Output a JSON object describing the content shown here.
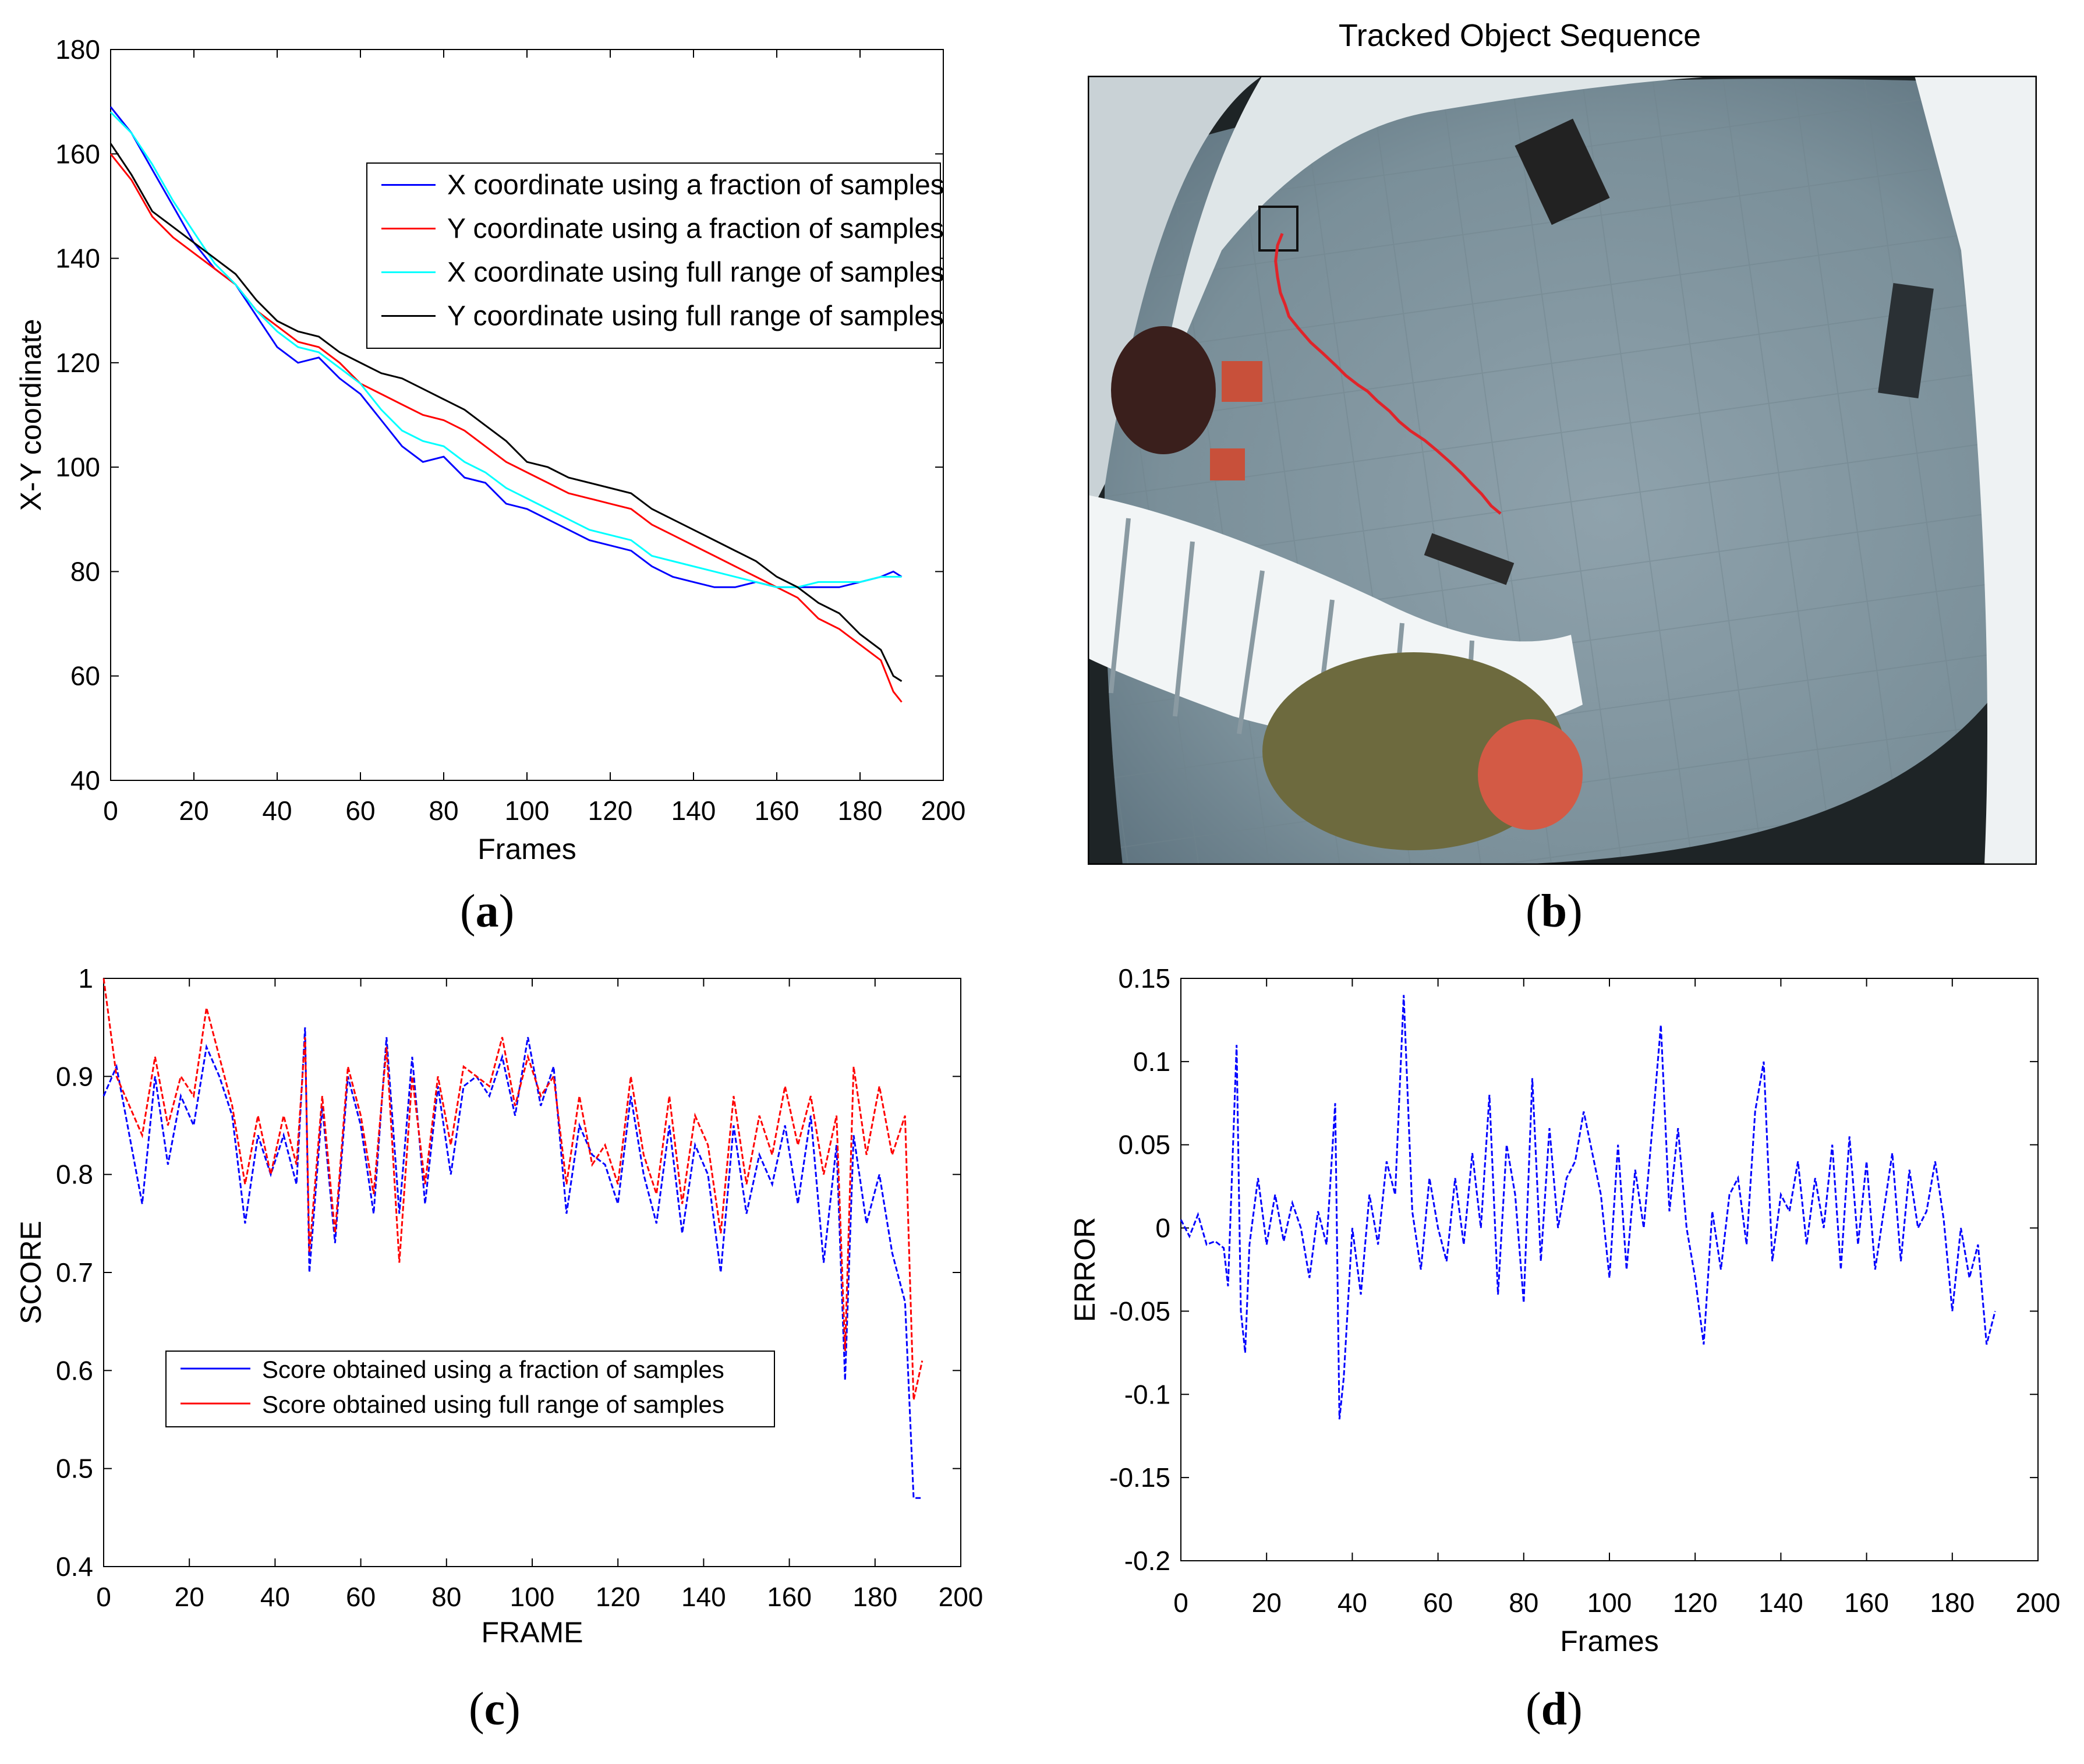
{
  "captions": {
    "a": {
      "open": "(",
      "letter": "a",
      "close": ")"
    },
    "b": {
      "open": "(",
      "letter": "b",
      "close": ")"
    },
    "c": {
      "open": "(",
      "letter": "c",
      "close": ")"
    },
    "d": {
      "open": "(",
      "letter": "d",
      "close": ")"
    }
  },
  "photo": {
    "title": "Tracked Object Sequence",
    "track_color": "#e0242a",
    "track_points": [
      [
        0.205,
        0.2
      ],
      [
        0.2,
        0.215
      ],
      [
        0.198,
        0.235
      ],
      [
        0.2,
        0.255
      ],
      [
        0.203,
        0.275
      ],
      [
        0.208,
        0.29
      ],
      [
        0.212,
        0.305
      ],
      [
        0.222,
        0.32
      ],
      [
        0.235,
        0.338
      ],
      [
        0.248,
        0.352
      ],
      [
        0.262,
        0.368
      ],
      [
        0.272,
        0.38
      ],
      [
        0.285,
        0.392
      ],
      [
        0.295,
        0.4
      ],
      [
        0.305,
        0.412
      ],
      [
        0.318,
        0.425
      ],
      [
        0.328,
        0.438
      ],
      [
        0.34,
        0.45
      ],
      [
        0.355,
        0.462
      ],
      [
        0.368,
        0.475
      ],
      [
        0.382,
        0.49
      ],
      [
        0.395,
        0.505
      ],
      [
        0.405,
        0.518
      ],
      [
        0.415,
        0.53
      ],
      [
        0.425,
        0.545
      ],
      [
        0.435,
        0.555
      ]
    ]
  },
  "chart_data": [
    {
      "id": "a",
      "type": "line",
      "title": "",
      "xlabel": "Frames",
      "ylabel": "X-Y coordinate",
      "xlim": [
        0,
        200
      ],
      "ylim": [
        40,
        180
      ],
      "xticks": [
        0,
        20,
        40,
        60,
        80,
        100,
        120,
        140,
        160,
        180,
        200
      ],
      "yticks": [
        40,
        60,
        80,
        100,
        120,
        140,
        160,
        180
      ],
      "legend_position": "top-right",
      "series": [
        {
          "name": "X coordinate using a fraction of samples",
          "color": "#0000ff",
          "x": [
            0,
            5,
            10,
            15,
            20,
            25,
            30,
            35,
            40,
            45,
            50,
            55,
            60,
            65,
            70,
            75,
            80,
            85,
            90,
            95,
            100,
            105,
            110,
            115,
            120,
            125,
            130,
            135,
            140,
            145,
            150,
            155,
            160,
            165,
            170,
            175,
            180,
            185,
            188,
            190
          ],
          "y": [
            169,
            164,
            157,
            150,
            143,
            138,
            135,
            129,
            123,
            120,
            121,
            117,
            114,
            109,
            104,
            101,
            102,
            98,
            97,
            93,
            92,
            90,
            88,
            86,
            85,
            84,
            81,
            79,
            78,
            77,
            77,
            78,
            77,
            77,
            77,
            77,
            78,
            79,
            80,
            79
          ]
        },
        {
          "name": "Y coordinate using a fraction of samples",
          "color": "#ff0000",
          "x": [
            0,
            5,
            10,
            15,
            20,
            25,
            30,
            35,
            40,
            45,
            50,
            55,
            60,
            65,
            70,
            75,
            80,
            85,
            90,
            95,
            100,
            105,
            110,
            115,
            120,
            125,
            130,
            135,
            140,
            145,
            150,
            155,
            160,
            165,
            170,
            175,
            180,
            185,
            188,
            190
          ],
          "y": [
            160,
            155,
            148,
            144,
            141,
            138,
            135,
            130,
            127,
            124,
            123,
            120,
            116,
            114,
            112,
            110,
            109,
            107,
            104,
            101,
            99,
            97,
            95,
            94,
            93,
            92,
            89,
            87,
            85,
            83,
            81,
            79,
            77,
            75,
            71,
            69,
            66,
            63,
            57,
            55
          ]
        },
        {
          "name": "X coordinate using full range of samples",
          "color": "#00ffff",
          "x": [
            0,
            5,
            10,
            15,
            20,
            25,
            30,
            35,
            40,
            45,
            50,
            55,
            60,
            65,
            70,
            75,
            80,
            85,
            90,
            95,
            100,
            105,
            110,
            115,
            120,
            125,
            130,
            135,
            140,
            145,
            150,
            155,
            160,
            165,
            170,
            175,
            180,
            185,
            188,
            190
          ],
          "y": [
            168,
            164,
            158,
            151,
            145,
            139,
            135,
            130,
            126,
            123,
            122,
            119,
            116,
            111,
            107,
            105,
            104,
            101,
            99,
            96,
            94,
            92,
            90,
            88,
            87,
            86,
            83,
            82,
            81,
            80,
            79,
            78,
            77,
            77,
            78,
            78,
            78,
            79,
            79,
            79
          ]
        },
        {
          "name": "Y coordinate using full range of samples",
          "color": "#000000",
          "x": [
            0,
            5,
            10,
            15,
            20,
            25,
            30,
            35,
            40,
            45,
            50,
            55,
            60,
            65,
            70,
            75,
            80,
            85,
            90,
            95,
            100,
            105,
            110,
            115,
            120,
            125,
            130,
            135,
            140,
            145,
            150,
            155,
            160,
            165,
            170,
            175,
            180,
            185,
            188,
            190
          ],
          "y": [
            162,
            156,
            149,
            146,
            143,
            140,
            137,
            132,
            128,
            126,
            125,
            122,
            120,
            118,
            117,
            115,
            113,
            111,
            108,
            105,
            101,
            100,
            98,
            97,
            96,
            95,
            92,
            90,
            88,
            86,
            84,
            82,
            79,
            77,
            74,
            72,
            68,
            65,
            60,
            59
          ]
        }
      ]
    },
    {
      "id": "c",
      "type": "line",
      "title": "",
      "xlabel": "FRAME",
      "ylabel": "SCORE",
      "xlim": [
        0,
        200
      ],
      "ylim": [
        0.4,
        1
      ],
      "xticks": [
        0,
        20,
        40,
        60,
        80,
        100,
        120,
        140,
        160,
        180,
        200
      ],
      "yticks": [
        0.4,
        0.5,
        0.6,
        0.7,
        0.8,
        0.9,
        1
      ],
      "legend_position": "bottom-left",
      "series": [
        {
          "name": "Score obtained using a fraction of samples",
          "color": "#0000ff",
          "x": [
            0,
            3,
            6,
            9,
            12,
            15,
            18,
            21,
            24,
            27,
            30,
            33,
            36,
            39,
            42,
            45,
            47,
            48,
            51,
            54,
            57,
            60,
            63,
            66,
            69,
            72,
            75,
            78,
            81,
            84,
            87,
            90,
            93,
            96,
            99,
            102,
            105,
            108,
            111,
            114,
            117,
            120,
            123,
            126,
            129,
            132,
            135,
            138,
            141,
            144,
            147,
            150,
            153,
            156,
            159,
            162,
            165,
            168,
            171,
            173,
            175,
            178,
            181,
            184,
            187,
            189,
            191
          ],
          "y": [
            0.88,
            0.91,
            0.84,
            0.77,
            0.9,
            0.81,
            0.88,
            0.85,
            0.93,
            0.9,
            0.86,
            0.75,
            0.84,
            0.8,
            0.84,
            0.79,
            0.95,
            0.7,
            0.87,
            0.73,
            0.9,
            0.85,
            0.76,
            0.94,
            0.76,
            0.92,
            0.77,
            0.89,
            0.8,
            0.89,
            0.9,
            0.88,
            0.92,
            0.86,
            0.94,
            0.87,
            0.91,
            0.76,
            0.85,
            0.82,
            0.81,
            0.77,
            0.88,
            0.8,
            0.75,
            0.85,
            0.74,
            0.83,
            0.8,
            0.7,
            0.85,
            0.76,
            0.82,
            0.79,
            0.85,
            0.77,
            0.86,
            0.71,
            0.83,
            0.59,
            0.84,
            0.75,
            0.8,
            0.72,
            0.67,
            0.47,
            0.47
          ]
        },
        {
          "name": "Score obtained using full range of samples",
          "color": "#ff0000",
          "x": [
            0,
            3,
            6,
            9,
            12,
            15,
            18,
            21,
            24,
            27,
            30,
            33,
            36,
            39,
            42,
            45,
            47,
            48,
            51,
            54,
            57,
            60,
            63,
            66,
            69,
            72,
            75,
            78,
            81,
            84,
            87,
            90,
            93,
            96,
            99,
            102,
            105,
            108,
            111,
            114,
            117,
            120,
            123,
            126,
            129,
            132,
            135,
            138,
            141,
            144,
            147,
            150,
            153,
            156,
            159,
            162,
            165,
            168,
            171,
            173,
            175,
            178,
            181,
            184,
            187,
            189,
            191
          ],
          "y": [
            1.0,
            0.9,
            0.87,
            0.84,
            0.92,
            0.85,
            0.9,
            0.88,
            0.97,
            0.92,
            0.87,
            0.79,
            0.86,
            0.8,
            0.86,
            0.81,
            0.94,
            0.72,
            0.88,
            0.74,
            0.91,
            0.86,
            0.78,
            0.93,
            0.71,
            0.9,
            0.79,
            0.9,
            0.83,
            0.91,
            0.9,
            0.89,
            0.94,
            0.87,
            0.92,
            0.88,
            0.9,
            0.79,
            0.88,
            0.81,
            0.83,
            0.79,
            0.9,
            0.82,
            0.78,
            0.88,
            0.77,
            0.86,
            0.83,
            0.74,
            0.88,
            0.79,
            0.86,
            0.82,
            0.89,
            0.83,
            0.88,
            0.8,
            0.86,
            0.62,
            0.91,
            0.82,
            0.89,
            0.82,
            0.86,
            0.57,
            0.61
          ]
        }
      ]
    },
    {
      "id": "d",
      "type": "line",
      "title": "",
      "xlabel": "Frames",
      "ylabel": "ERROR",
      "xlim": [
        0,
        200
      ],
      "ylim": [
        -0.2,
        0.15
      ],
      "xticks": [
        0,
        20,
        40,
        60,
        80,
        100,
        120,
        140,
        160,
        180,
        200
      ],
      "yticks": [
        -0.2,
        -0.15,
        -0.1,
        -0.05,
        0,
        0.05,
        0.1,
        0.15
      ],
      "series": [
        {
          "name": "Error",
          "color": "#0000ff",
          "x": [
            0,
            2,
            4,
            6,
            8,
            10,
            11,
            13,
            14,
            15,
            16,
            18,
            20,
            22,
            24,
            26,
            28,
            30,
            32,
            34,
            36,
            37,
            38,
            40,
            42,
            44,
            46,
            48,
            50,
            52,
            54,
            56,
            58,
            60,
            62,
            64,
            66,
            68,
            70,
            72,
            74,
            76,
            78,
            80,
            82,
            84,
            86,
            88,
            90,
            92,
            94,
            96,
            98,
            100,
            102,
            104,
            106,
            108,
            110,
            112,
            114,
            116,
            118,
            120,
            122,
            124,
            126,
            128,
            130,
            132,
            134,
            136,
            138,
            140,
            142,
            144,
            146,
            148,
            150,
            152,
            154,
            156,
            158,
            160,
            162,
            164,
            166,
            168,
            170,
            172,
            174,
            176,
            178,
            180,
            182,
            184,
            186,
            188,
            190
          ],
          "y": [
            0.005,
            -0.005,
            0.008,
            -0.01,
            -0.008,
            -0.012,
            -0.035,
            0.11,
            -0.05,
            -0.075,
            -0.01,
            0.03,
            -0.01,
            0.02,
            -0.008,
            0.015,
            0.0,
            -0.03,
            0.01,
            -0.01,
            0.075,
            -0.115,
            -0.09,
            0.0,
            -0.04,
            0.02,
            -0.01,
            0.04,
            0.02,
            0.14,
            0.01,
            -0.025,
            0.03,
            0.0,
            -0.02,
            0.03,
            -0.01,
            0.045,
            0.0,
            0.08,
            -0.04,
            0.05,
            0.02,
            -0.045,
            0.09,
            -0.02,
            0.06,
            0.0,
            0.03,
            0.04,
            0.07,
            0.045,
            0.02,
            -0.03,
            0.05,
            -0.025,
            0.035,
            0.0,
            0.06,
            0.122,
            0.01,
            0.06,
            0.0,
            -0.03,
            -0.07,
            0.01,
            -0.025,
            0.02,
            0.03,
            -0.01,
            0.07,
            0.1,
            -0.02,
            0.02,
            0.01,
            0.04,
            -0.01,
            0.03,
            0.0,
            0.05,
            -0.025,
            0.055,
            -0.01,
            0.04,
            -0.025,
            0.01,
            0.045,
            -0.02,
            0.035,
            0.0,
            0.01,
            0.04,
            0.005,
            -0.05,
            0.0,
            -0.03,
            -0.01,
            -0.07,
            -0.05
          ]
        }
      ]
    }
  ]
}
